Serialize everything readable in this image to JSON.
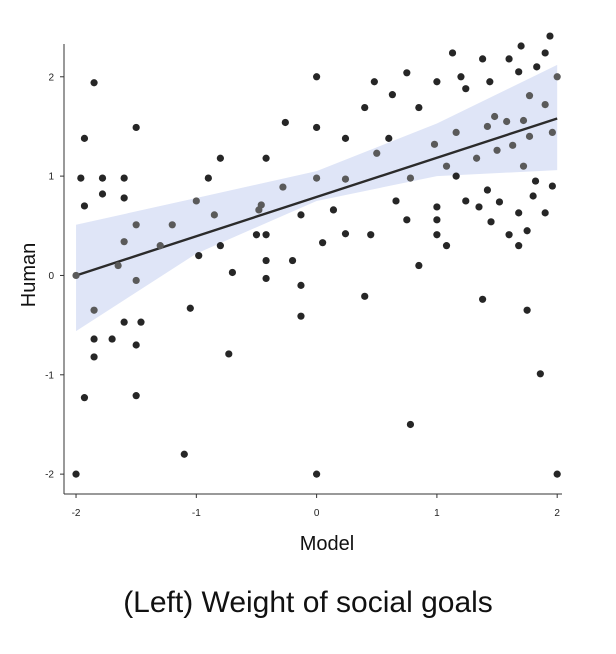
{
  "caption": "(Left) Weight of social goals",
  "colors": {
    "band": "#dfe5f7",
    "line": "#2b2b2b",
    "point_dark": "#262626",
    "point_mid": "#5a5a5a",
    "axis": "#333333"
  },
  "chart_data": {
    "type": "scatter",
    "title": "",
    "xlabel": "Model",
    "ylabel": "Human",
    "xlim": [
      -2.1,
      2.04
    ],
    "ylim": [
      -2.2,
      2.33
    ],
    "x_ticks": [
      -2,
      -1,
      0,
      1,
      2
    ],
    "x_tick_labels": [
      "-2",
      "-1",
      "0",
      "1",
      "2"
    ],
    "y_ticks": [
      -2,
      -1,
      0,
      1,
      2
    ],
    "y_tick_labels": [
      "-2",
      "-1",
      "0",
      "1",
      "2"
    ],
    "grid": false,
    "regression": {
      "x": [
        -2,
        2
      ],
      "y": [
        0.0,
        1.58
      ]
    },
    "confidence_band": {
      "x": [
        -2,
        -1,
        0,
        1,
        2
      ],
      "lower": [
        -0.56,
        0.22,
        0.75,
        1.0,
        1.06
      ],
      "upper": [
        0.51,
        0.78,
        1.05,
        1.53,
        2.12
      ]
    },
    "points": [
      {
        "x": -2.0,
        "y": 0.0
      },
      {
        "x": -2.0,
        "y": -2.0
      },
      {
        "x": -1.96,
        "y": 0.98
      },
      {
        "x": -1.93,
        "y": 1.38
      },
      {
        "x": -1.93,
        "y": 0.7
      },
      {
        "x": -1.93,
        "y": -1.23
      },
      {
        "x": -1.85,
        "y": 1.94
      },
      {
        "x": -1.85,
        "y": -0.35
      },
      {
        "x": -1.85,
        "y": -0.64
      },
      {
        "x": -1.85,
        "y": -0.82
      },
      {
        "x": -1.78,
        "y": 0.98
      },
      {
        "x": -1.78,
        "y": 0.82
      },
      {
        "x": -1.7,
        "y": -0.64
      },
      {
        "x": -1.65,
        "y": 0.1
      },
      {
        "x": -1.6,
        "y": 0.98
      },
      {
        "x": -1.6,
        "y": 0.78
      },
      {
        "x": -1.6,
        "y": 0.34
      },
      {
        "x": -1.6,
        "y": -0.47
      },
      {
        "x": -1.5,
        "y": 1.49
      },
      {
        "x": -1.5,
        "y": 0.51
      },
      {
        "x": -1.5,
        "y": -0.05
      },
      {
        "x": -1.5,
        "y": -0.7
      },
      {
        "x": -1.5,
        "y": -1.21
      },
      {
        "x": -1.46,
        "y": -0.47
      },
      {
        "x": -1.3,
        "y": 0.3
      },
      {
        "x": -1.2,
        "y": 0.51
      },
      {
        "x": -1.1,
        "y": -1.8
      },
      {
        "x": -1.05,
        "y": -0.33
      },
      {
        "x": -1.0,
        "y": 0.75
      },
      {
        "x": -0.98,
        "y": 0.2
      },
      {
        "x": -0.9,
        "y": 0.98
      },
      {
        "x": -0.85,
        "y": 0.61
      },
      {
        "x": -0.8,
        "y": 1.18
      },
      {
        "x": -0.8,
        "y": 0.3
      },
      {
        "x": -0.73,
        "y": -0.79
      },
      {
        "x": -0.7,
        "y": 0.03
      },
      {
        "x": -0.5,
        "y": 0.41
      },
      {
        "x": -0.48,
        "y": 0.66
      },
      {
        "x": -0.46,
        "y": 0.71
      },
      {
        "x": -0.42,
        "y": 1.18
      },
      {
        "x": -0.42,
        "y": 0.41
      },
      {
        "x": -0.42,
        "y": 0.15
      },
      {
        "x": -0.42,
        "y": -0.03
      },
      {
        "x": -0.28,
        "y": 0.89
      },
      {
        "x": -0.26,
        "y": 1.54
      },
      {
        "x": -0.2,
        "y": 0.15
      },
      {
        "x": -0.13,
        "y": 0.61
      },
      {
        "x": -0.13,
        "y": -0.1
      },
      {
        "x": -0.13,
        "y": -0.41
      },
      {
        "x": 0.0,
        "y": 2.0
      },
      {
        "x": 0.0,
        "y": 1.49
      },
      {
        "x": 0.0,
        "y": 0.98
      },
      {
        "x": 0.0,
        "y": -2.0
      },
      {
        "x": 0.05,
        "y": 0.33
      },
      {
        "x": 0.14,
        "y": 0.66
      },
      {
        "x": 0.24,
        "y": 1.38
      },
      {
        "x": 0.24,
        "y": 0.97
      },
      {
        "x": 0.24,
        "y": 0.42
      },
      {
        "x": 0.4,
        "y": 1.69
      },
      {
        "x": 0.4,
        "y": -0.21
      },
      {
        "x": 0.45,
        "y": 0.41
      },
      {
        "x": 0.48,
        "y": 1.95
      },
      {
        "x": 0.5,
        "y": 1.23
      },
      {
        "x": 0.6,
        "y": 1.38
      },
      {
        "x": 0.63,
        "y": 1.82
      },
      {
        "x": 0.66,
        "y": 0.75
      },
      {
        "x": 0.75,
        "y": 2.04
      },
      {
        "x": 0.75,
        "y": 0.56
      },
      {
        "x": 0.78,
        "y": 0.98
      },
      {
        "x": 0.78,
        "y": -1.5
      },
      {
        "x": 0.85,
        "y": 1.69
      },
      {
        "x": 0.85,
        "y": 0.1
      },
      {
        "x": 0.98,
        "y": 1.32
      },
      {
        "x": 1.0,
        "y": 1.95
      },
      {
        "x": 1.0,
        "y": 0.69
      },
      {
        "x": 1.0,
        "y": 0.56
      },
      {
        "x": 1.0,
        "y": 0.41
      },
      {
        "x": 1.08,
        "y": 1.1
      },
      {
        "x": 1.08,
        "y": 0.3
      },
      {
        "x": 1.13,
        "y": 2.24
      },
      {
        "x": 1.16,
        "y": 1.44
      },
      {
        "x": 1.16,
        "y": 1.0
      },
      {
        "x": 1.2,
        "y": 2.0
      },
      {
        "x": 1.24,
        "y": 1.88
      },
      {
        "x": 1.24,
        "y": 0.75
      },
      {
        "x": 1.33,
        "y": 1.18
      },
      {
        "x": 1.35,
        "y": 0.69
      },
      {
        "x": 1.38,
        "y": 2.18
      },
      {
        "x": 1.38,
        "y": -0.24
      },
      {
        "x": 1.42,
        "y": 1.5
      },
      {
        "x": 1.42,
        "y": 0.86
      },
      {
        "x": 1.44,
        "y": 1.95
      },
      {
        "x": 1.45,
        "y": 0.54
      },
      {
        "x": 1.48,
        "y": 1.6
      },
      {
        "x": 1.5,
        "y": 1.26
      },
      {
        "x": 1.52,
        "y": 0.74
      },
      {
        "x": 1.58,
        "y": 1.55
      },
      {
        "x": 1.6,
        "y": 2.18
      },
      {
        "x": 1.6,
        "y": 0.41
      },
      {
        "x": 1.63,
        "y": 1.31
      },
      {
        "x": 1.68,
        "y": 2.05
      },
      {
        "x": 1.68,
        "y": 0.63
      },
      {
        "x": 1.68,
        "y": 0.3
      },
      {
        "x": 1.7,
        "y": 2.31
      },
      {
        "x": 1.72,
        "y": 1.56
      },
      {
        "x": 1.72,
        "y": 1.1
      },
      {
        "x": 1.75,
        "y": 0.45
      },
      {
        "x": 1.75,
        "y": -0.35
      },
      {
        "x": 1.77,
        "y": 1.81
      },
      {
        "x": 1.77,
        "y": 1.4
      },
      {
        "x": 1.8,
        "y": 0.8
      },
      {
        "x": 1.82,
        "y": 0.95
      },
      {
        "x": 1.83,
        "y": 2.1
      },
      {
        "x": 1.86,
        "y": -0.99
      },
      {
        "x": 1.9,
        "y": 2.24
      },
      {
        "x": 1.9,
        "y": 1.72
      },
      {
        "x": 1.9,
        "y": 0.63
      },
      {
        "x": 1.94,
        "y": 2.41
      },
      {
        "x": 1.96,
        "y": 1.44
      },
      {
        "x": 1.96,
        "y": 0.9
      },
      {
        "x": 2.0,
        "y": 2.0
      },
      {
        "x": 2.0,
        "y": -2.0
      }
    ]
  }
}
